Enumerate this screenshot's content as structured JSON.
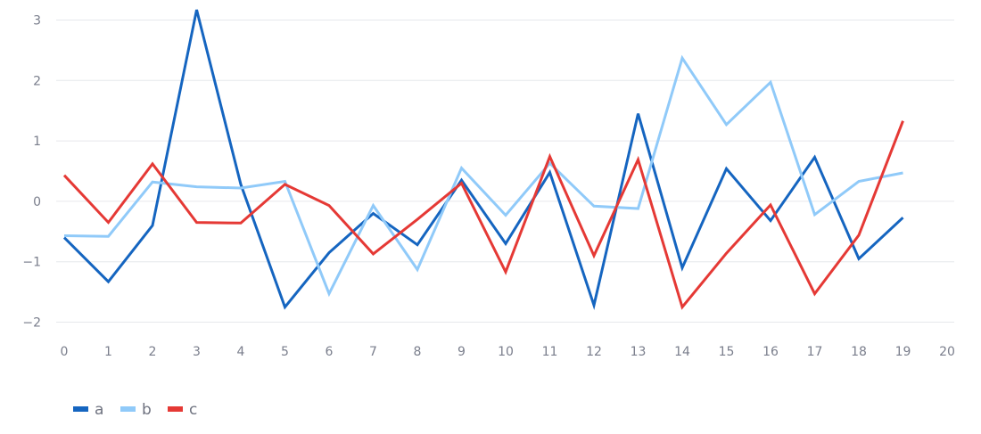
{
  "chart_data": {
    "type": "line",
    "title": "",
    "xlabel": "",
    "ylabel": "",
    "x": [
      0,
      1,
      2,
      3,
      4,
      5,
      6,
      7,
      8,
      9,
      10,
      11,
      12,
      13,
      14,
      15,
      16,
      17,
      18,
      19
    ],
    "xlim": [
      0,
      20
    ],
    "ylim": [
      -2.2,
      3.25
    ],
    "x_ticks": [
      0,
      1,
      2,
      3,
      4,
      5,
      6,
      7,
      8,
      9,
      10,
      11,
      12,
      13,
      14,
      15,
      16,
      17,
      18,
      19,
      20
    ],
    "y_ticks": [
      -2,
      -1,
      0,
      1,
      2,
      3
    ],
    "y_tick_labels": [
      "−2",
      "−1",
      "0",
      "1",
      "2",
      "3"
    ],
    "grid": "horizontal",
    "legend_position": "bottom-left",
    "series": [
      {
        "name": "a",
        "color": "#1565c0",
        "values": [
          -0.6,
          -1.33,
          -0.4,
          3.17,
          0.28,
          -1.75,
          -0.85,
          -0.2,
          -0.72,
          0.35,
          -0.7,
          0.48,
          -1.72,
          1.45,
          -1.1,
          0.54,
          -0.32,
          0.73,
          -0.95,
          -0.27
        ]
      },
      {
        "name": "b",
        "color": "#90caf9",
        "values": [
          -0.57,
          -0.58,
          0.32,
          0.24,
          0.22,
          0.33,
          -1.53,
          -0.07,
          -1.13,
          0.55,
          -0.23,
          0.63,
          -0.08,
          -0.12,
          2.37,
          1.27,
          1.97,
          -0.22,
          0.33,
          0.47
        ]
      },
      {
        "name": "c",
        "color": "#e53935",
        "values": [
          0.43,
          -0.35,
          0.62,
          -0.35,
          -0.36,
          0.28,
          -0.07,
          -0.87,
          -0.3,
          0.3,
          -1.17,
          0.74,
          -0.9,
          0.69,
          -1.75,
          -0.86,
          -0.06,
          -1.53,
          -0.56,
          1.33
        ]
      }
    ]
  }
}
